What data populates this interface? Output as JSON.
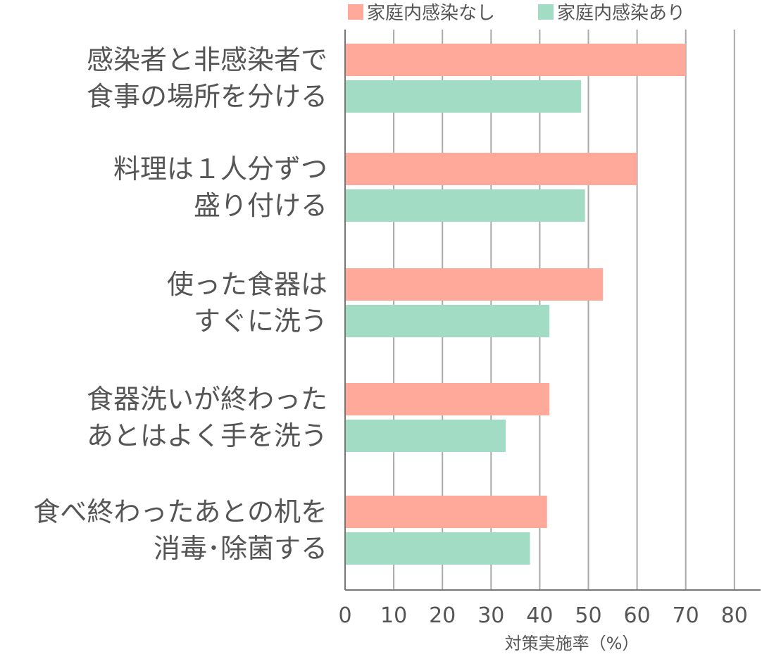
{
  "chart_data": {
    "type": "bar",
    "orientation": "horizontal",
    "categories": [
      [
        "感染者と非感染者で",
        "食事の場所を分ける"
      ],
      [
        "料理は１人分ずつ",
        "盛り付ける"
      ],
      [
        "使った食器は",
        "すぐに洗う"
      ],
      [
        "食器洗いが終わった",
        "あとはよく手を洗う"
      ],
      [
        "食べ終わったあとの机を",
        "消毒･除菌する"
      ]
    ],
    "series": [
      {
        "name": "家庭内感染なし",
        "color": "#fea99a",
        "values": [
          70,
          60,
          53,
          42,
          41.5
        ]
      },
      {
        "name": "家庭内感染あり",
        "color": "#a3dcc5",
        "values": [
          48.5,
          49.3,
          42,
          33,
          38
        ]
      }
    ],
    "xlabel": "対策実施率（%）",
    "ylabel": "",
    "xlim": [
      0,
      85
    ],
    "xticks": [
      0,
      10,
      20,
      30,
      40,
      50,
      60,
      70,
      80
    ],
    "grid": true,
    "legend": "top"
  }
}
